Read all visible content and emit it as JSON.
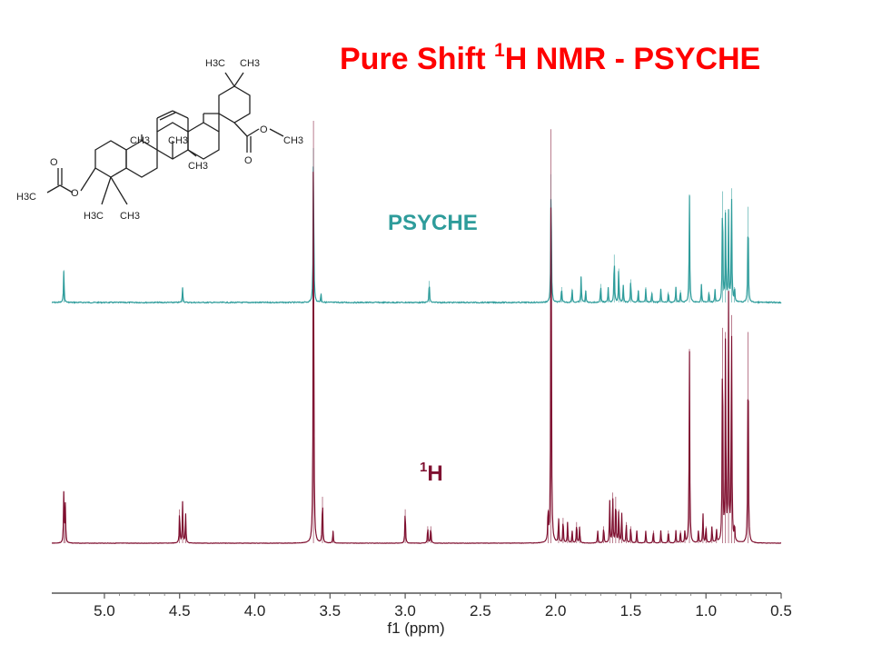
{
  "title": {
    "main": "Pure Shift ",
    "sup": "1",
    "rest": "H NMR - PSYCHE"
  },
  "labels": {
    "psyche": "PSYCHE",
    "proton_sup": "1",
    "proton_rest": "H"
  },
  "structure_labels": {
    "h3c_top": "H3C",
    "ch3_top": "CH3",
    "o_ester": "O",
    "ch3_ester": "CH3",
    "o_carbonyl": "O",
    "ch3_a": "CH3",
    "ch3_b": "CH3",
    "ch3_c": "CH3",
    "o_acetyl": "O",
    "h3c_acetyl": "H3C",
    "o_ring": "O",
    "h3c_gem": "H3C",
    "ch3_gem": "CH3"
  },
  "colors": {
    "title": "#ff0000",
    "psyche": "#2e9c9b",
    "proton": "#7f1030",
    "axis": "#555555"
  },
  "chart_data": {
    "type": "line",
    "xlabel": "f1 (ppm)",
    "xlim": [
      5.35,
      0.5
    ],
    "reversed_x": true,
    "ticks": [
      5.0,
      4.5,
      4.0,
      3.5,
      3.0,
      2.5,
      2.0,
      1.5,
      1.0,
      0.5
    ],
    "tick_labels": [
      "5.0",
      "4.5",
      "4.0",
      "3.5",
      "3.0",
      "2.5",
      "2.0",
      "1.5",
      "1.0",
      "0.5"
    ],
    "series": [
      {
        "name": "PSYCHE",
        "peaks": [
          [
            5.27,
            0.21
          ],
          [
            4.48,
            0.1
          ],
          [
            3.61,
            1.0
          ],
          [
            3.56,
            0.06
          ],
          [
            2.84,
            0.14
          ],
          [
            2.03,
            0.83
          ],
          [
            1.96,
            0.1
          ],
          [
            1.89,
            0.09
          ],
          [
            1.83,
            0.17
          ],
          [
            1.8,
            0.08
          ],
          [
            1.7,
            0.12
          ],
          [
            1.65,
            0.1
          ],
          [
            1.61,
            0.31
          ],
          [
            1.58,
            0.22
          ],
          [
            1.55,
            0.11
          ],
          [
            1.5,
            0.15
          ],
          [
            1.45,
            0.08
          ],
          [
            1.4,
            0.1
          ],
          [
            1.36,
            0.07
          ],
          [
            1.3,
            0.09
          ],
          [
            1.25,
            0.07
          ],
          [
            1.2,
            0.1
          ],
          [
            1.17,
            0.08
          ],
          [
            1.11,
            0.7
          ],
          [
            1.03,
            0.12
          ],
          [
            0.98,
            0.07
          ],
          [
            0.94,
            0.08
          ],
          [
            0.89,
            0.72
          ],
          [
            0.87,
            0.6
          ],
          [
            0.85,
            0.58
          ],
          [
            0.83,
            0.74
          ],
          [
            0.81,
            0.1
          ],
          [
            0.72,
            0.62
          ]
        ]
      },
      {
        "name": "1H",
        "peaks": [
          [
            5.27,
            0.12
          ],
          [
            5.26,
            0.09
          ],
          [
            4.5,
            0.08
          ],
          [
            4.48,
            0.1
          ],
          [
            4.46,
            0.07
          ],
          [
            3.61,
            1.0
          ],
          [
            3.55,
            0.11
          ],
          [
            3.48,
            0.03
          ],
          [
            3.0,
            0.08
          ],
          [
            2.85,
            0.04
          ],
          [
            2.83,
            0.04
          ],
          [
            2.05,
            0.08
          ],
          [
            2.03,
            0.98
          ],
          [
            1.98,
            0.06
          ],
          [
            1.95,
            0.06
          ],
          [
            1.92,
            0.05
          ],
          [
            1.89,
            0.03
          ],
          [
            1.86,
            0.05
          ],
          [
            1.84,
            0.04
          ],
          [
            1.72,
            0.03
          ],
          [
            1.68,
            0.04
          ],
          [
            1.64,
            0.1
          ],
          [
            1.62,
            0.12
          ],
          [
            1.6,
            0.11
          ],
          [
            1.58,
            0.08
          ],
          [
            1.56,
            0.07
          ],
          [
            1.53,
            0.05
          ],
          [
            1.5,
            0.04
          ],
          [
            1.46,
            0.03
          ],
          [
            1.4,
            0.03
          ],
          [
            1.35,
            0.03
          ],
          [
            1.3,
            0.03
          ],
          [
            1.25,
            0.03
          ],
          [
            1.2,
            0.03
          ],
          [
            1.17,
            0.03
          ],
          [
            1.14,
            0.03
          ],
          [
            1.11,
            0.46
          ],
          [
            1.05,
            0.03
          ],
          [
            1.02,
            0.07
          ],
          [
            1.0,
            0.04
          ],
          [
            0.96,
            0.04
          ],
          [
            0.93,
            0.03
          ],
          [
            0.89,
            0.51
          ],
          [
            0.87,
            0.5
          ],
          [
            0.85,
            0.58
          ],
          [
            0.83,
            0.54
          ],
          [
            0.81,
            0.04
          ],
          [
            0.72,
            0.5
          ]
        ]
      }
    ]
  }
}
